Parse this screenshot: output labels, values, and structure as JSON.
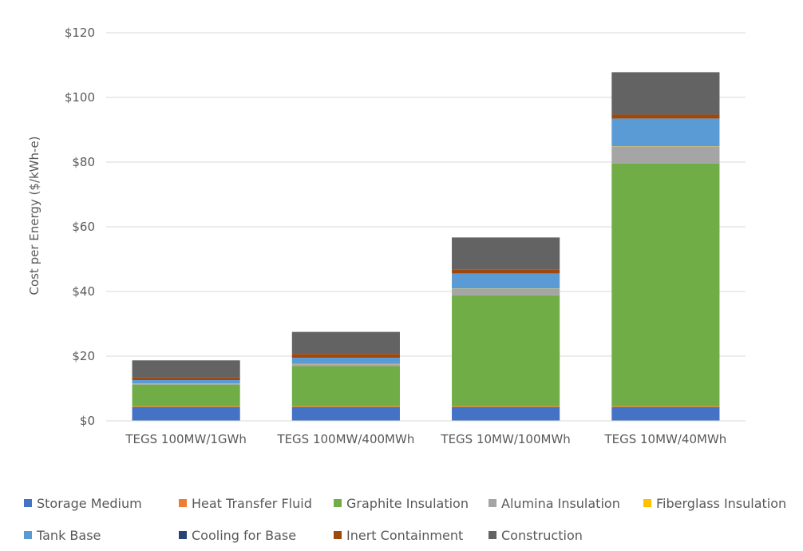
{
  "chart_data": {
    "type": "bar",
    "stacked": true,
    "ylabel": "Cost per Energy ($/kWh-e)",
    "ylim": [
      0,
      120
    ],
    "yticks": [
      "$0",
      "$20",
      "$40",
      "$60",
      "$80",
      "$100",
      "$120"
    ],
    "ytick_values": [
      0,
      20,
      40,
      60,
      80,
      100,
      120
    ],
    "grid": true,
    "legend_position": "bottom",
    "categories": [
      "TEGS 100MW/1GWh",
      "TEGS 100MW/400MWh",
      "TEGS 10MW/100MWh",
      "TEGS 10MW/40MWh"
    ],
    "series": [
      {
        "name": "Storage Medium",
        "color": "#4472C4",
        "values": [
          4.2,
          4.2,
          4.2,
          4.2
        ]
      },
      {
        "name": "Heat Transfer Fluid",
        "color": "#ED7D31",
        "values": [
          0.3,
          0.3,
          0.3,
          0.3
        ]
      },
      {
        "name": "Graphite Insulation",
        "color": "#70AD47",
        "values": [
          6.7,
          12.4,
          34.3,
          75.1
        ]
      },
      {
        "name": "Alumina Insulation",
        "color": "#A5A5A5",
        "values": [
          0.3,
          0.6,
          2.0,
          5.2
        ]
      },
      {
        "name": "Fiberglass Insulation",
        "color": "#FFC000",
        "values": [
          0.1,
          0.1,
          0.1,
          0.1
        ]
      },
      {
        "name": "Tank Base",
        "color": "#5B9BD5",
        "values": [
          1.0,
          1.9,
          4.6,
          8.5
        ]
      },
      {
        "name": "Cooling for Base",
        "color": "#264478",
        "values": [
          0.1,
          0.1,
          0.1,
          0.1
        ]
      },
      {
        "name": "Inert Containment",
        "color": "#9E480E",
        "values": [
          0.8,
          1.1,
          1.1,
          1.2
        ]
      },
      {
        "name": "Construction",
        "color": "#636363",
        "values": [
          5.2,
          6.8,
          10.0,
          13.1
        ]
      }
    ]
  }
}
